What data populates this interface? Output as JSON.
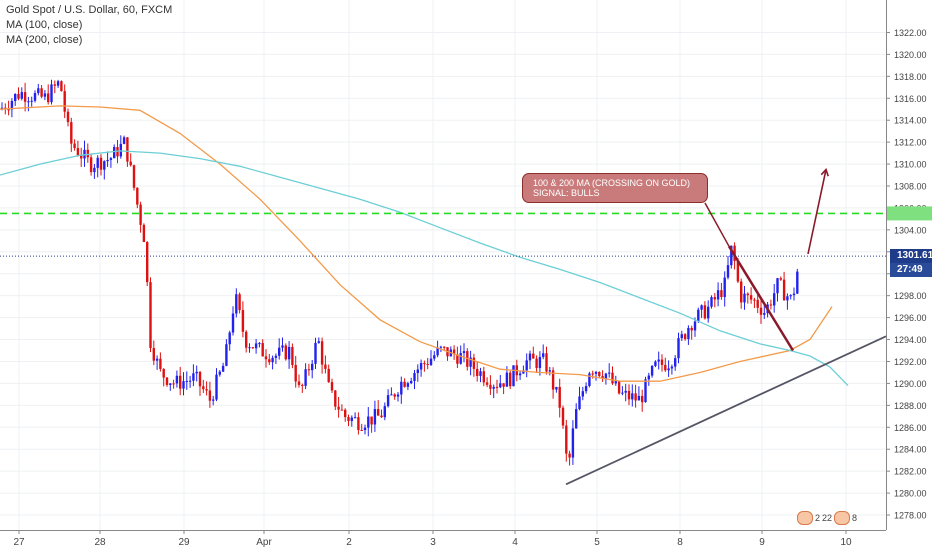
{
  "legend": {
    "symbol": "Gold Spot / U.S. Dollar, 60, FXCM",
    "ma100": "MA (100, close)",
    "ma200": "MA (200, close)"
  },
  "price_labels": {
    "last_price": "1301.61",
    "countdown": "27:49"
  },
  "annotation": {
    "line1": "100 & 200 MA (CROSSING ON GOLD)",
    "line2": "SIGNAL: BULLS"
  },
  "bottom_badges": {
    "b1": "2",
    "b2": "22",
    "b3": "8"
  },
  "colors": {
    "bull": "#2222ee",
    "bear": "#dd1111",
    "ma100": "#f39a4a",
    "ma200": "#6ccfd6",
    "level_line": "#22dd22",
    "trendline": "#555566",
    "arrow": "#8a1a2a",
    "price_box": "#1f3c8a"
  },
  "chart_data": {
    "type": "candlestick",
    "title": "Gold Spot / U.S. Dollar, 60, FXCM",
    "x_ticks": [
      "27",
      "28",
      "29",
      "Apr",
      "2",
      "3",
      "4",
      "5",
      "8",
      "9",
      "10"
    ],
    "y_ticks": [
      1278,
      1280,
      1282,
      1284,
      1286,
      1288,
      1290,
      1292,
      1294,
      1296,
      1298,
      1300,
      1302,
      1304,
      1306,
      1308,
      1310,
      1312,
      1314,
      1316,
      1318,
      1320,
      1322
    ],
    "ylim": [
      1277,
      1323.5
    ],
    "grid": true,
    "legend_placement": "top-left",
    "horizontal_level": 1305.5,
    "last_price": 1301.61,
    "price_path": [
      {
        "x": 0,
        "y": 1315.0
      },
      {
        "x": 20,
        "y": 1316.5
      },
      {
        "x": 45,
        "y": 1316.0
      },
      {
        "x": 60,
        "y": 1317.5
      },
      {
        "x": 70,
        "y": 1312.0
      },
      {
        "x": 90,
        "y": 1310.0
      },
      {
        "x": 110,
        "y": 1310.5
      },
      {
        "x": 125,
        "y": 1312.0
      },
      {
        "x": 138,
        "y": 1306.0
      },
      {
        "x": 145,
        "y": 1303.0
      },
      {
        "x": 150,
        "y": 1294.0
      },
      {
        "x": 160,
        "y": 1291.0
      },
      {
        "x": 175,
        "y": 1290.0
      },
      {
        "x": 195,
        "y": 1290.5
      },
      {
        "x": 210,
        "y": 1288.5
      },
      {
        "x": 225,
        "y": 1292.0
      },
      {
        "x": 235,
        "y": 1298.0
      },
      {
        "x": 245,
        "y": 1294.0
      },
      {
        "x": 260,
        "y": 1293.0
      },
      {
        "x": 275,
        "y": 1292.5
      },
      {
        "x": 290,
        "y": 1293.0
      },
      {
        "x": 300,
        "y": 1289.0
      },
      {
        "x": 318,
        "y": 1294.0
      },
      {
        "x": 330,
        "y": 1289.0
      },
      {
        "x": 345,
        "y": 1287.0
      },
      {
        "x": 360,
        "y": 1286.5
      },
      {
        "x": 380,
        "y": 1287.0
      },
      {
        "x": 400,
        "y": 1290.0
      },
      {
        "x": 420,
        "y": 1291.5
      },
      {
        "x": 440,
        "y": 1293.0
      },
      {
        "x": 460,
        "y": 1292.5
      },
      {
        "x": 480,
        "y": 1291.0
      },
      {
        "x": 495,
        "y": 1290.0
      },
      {
        "x": 510,
        "y": 1290.5
      },
      {
        "x": 525,
        "y": 1292.0
      },
      {
        "x": 545,
        "y": 1292.0
      },
      {
        "x": 560,
        "y": 1288.0
      },
      {
        "x": 568,
        "y": 1282.0
      },
      {
        "x": 575,
        "y": 1287.0
      },
      {
        "x": 590,
        "y": 1291.5
      },
      {
        "x": 605,
        "y": 1291.0
      },
      {
        "x": 620,
        "y": 1289.0
      },
      {
        "x": 640,
        "y": 1288.5
      },
      {
        "x": 655,
        "y": 1291.5
      },
      {
        "x": 670,
        "y": 1292.0
      },
      {
        "x": 690,
        "y": 1295.5
      },
      {
        "x": 710,
        "y": 1297.0
      },
      {
        "x": 725,
        "y": 1299.0
      },
      {
        "x": 732,
        "y": 1302.5
      },
      {
        "x": 740,
        "y": 1298.0
      },
      {
        "x": 755,
        "y": 1297.5
      },
      {
        "x": 765,
        "y": 1296.5
      },
      {
        "x": 778,
        "y": 1299.0
      },
      {
        "x": 792,
        "y": 1297.5
      },
      {
        "x": 800,
        "y": 1301.6
      }
    ],
    "series": [
      {
        "name": "MA (100, close)",
        "points": [
          {
            "x": 0,
            "y": 1315.0
          },
          {
            "x": 60,
            "y": 1315.3
          },
          {
            "x": 100,
            "y": 1315.2
          },
          {
            "x": 140,
            "y": 1314.9
          },
          {
            "x": 180,
            "y": 1312.8
          },
          {
            "x": 220,
            "y": 1310.0
          },
          {
            "x": 260,
            "y": 1306.8
          },
          {
            "x": 300,
            "y": 1303.0
          },
          {
            "x": 340,
            "y": 1299.0
          },
          {
            "x": 380,
            "y": 1295.8
          },
          {
            "x": 420,
            "y": 1293.8
          },
          {
            "x": 460,
            "y": 1292.5
          },
          {
            "x": 500,
            "y": 1291.3
          },
          {
            "x": 540,
            "y": 1291.0
          },
          {
            "x": 580,
            "y": 1290.8
          },
          {
            "x": 620,
            "y": 1290.2
          },
          {
            "x": 660,
            "y": 1290.2
          },
          {
            "x": 700,
            "y": 1291.0
          },
          {
            "x": 740,
            "y": 1292.0
          },
          {
            "x": 790,
            "y": 1293.0
          },
          {
            "x": 810,
            "y": 1294.0
          },
          {
            "x": 832,
            "y": 1297.0
          }
        ]
      },
      {
        "name": "MA (200, close)",
        "points": [
          {
            "x": 0,
            "y": 1309.0
          },
          {
            "x": 40,
            "y": 1310.0
          },
          {
            "x": 80,
            "y": 1310.8
          },
          {
            "x": 120,
            "y": 1311.2
          },
          {
            "x": 160,
            "y": 1311.0
          },
          {
            "x": 200,
            "y": 1310.5
          },
          {
            "x": 240,
            "y": 1309.8
          },
          {
            "x": 280,
            "y": 1308.8
          },
          {
            "x": 320,
            "y": 1307.8
          },
          {
            "x": 360,
            "y": 1306.8
          },
          {
            "x": 400,
            "y": 1305.6
          },
          {
            "x": 440,
            "y": 1304.2
          },
          {
            "x": 480,
            "y": 1302.8
          },
          {
            "x": 520,
            "y": 1301.5
          },
          {
            "x": 560,
            "y": 1300.4
          },
          {
            "x": 600,
            "y": 1299.2
          },
          {
            "x": 640,
            "y": 1297.8
          },
          {
            "x": 680,
            "y": 1296.4
          },
          {
            "x": 720,
            "y": 1294.8
          },
          {
            "x": 760,
            "y": 1293.6
          },
          {
            "x": 790,
            "y": 1293.0
          },
          {
            "x": 810,
            "y": 1292.5
          },
          {
            "x": 830,
            "y": 1291.5
          },
          {
            "x": 848,
            "y": 1289.8
          }
        ]
      }
    ],
    "trendlines": [
      {
        "name": "support",
        "from": {
          "x": 566,
          "y": 1280.8
        },
        "to": {
          "x": 886,
          "y": 1294.3
        }
      },
      {
        "name": "down-pointer",
        "from": {
          "x": 729,
          "y": 1302.5
        },
        "to": {
          "x": 793,
          "y": 1293.0
        }
      },
      {
        "name": "up-arrow",
        "from": {
          "x": 808,
          "y": 1301.8
        },
        "to": {
          "x": 826,
          "y": 1309.5
        }
      }
    ]
  }
}
